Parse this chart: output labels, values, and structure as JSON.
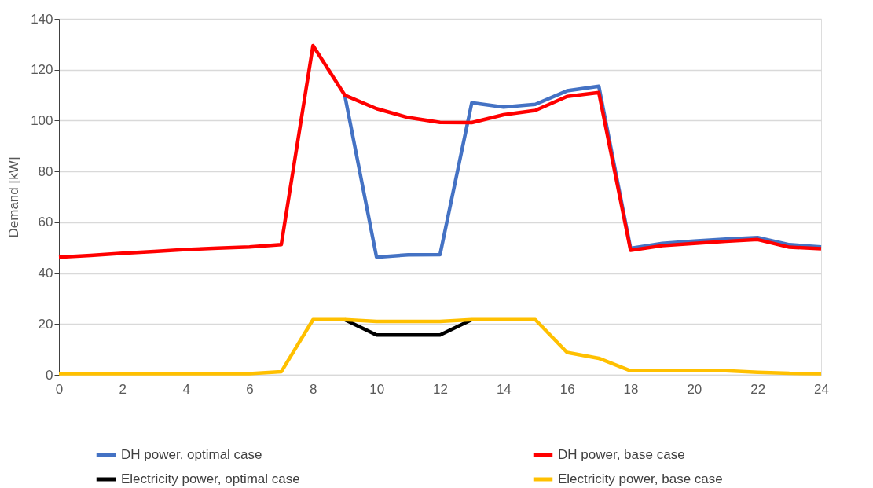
{
  "chart_data": {
    "type": "line",
    "ylabel": "Demand [kW]",
    "x": [
      0,
      1,
      2,
      3,
      4,
      5,
      6,
      7,
      8,
      9,
      10,
      11,
      12,
      13,
      14,
      15,
      16,
      17,
      18,
      19,
      20,
      21,
      22,
      23,
      24
    ],
    "series": [
      {
        "name": "DH power, optimal case",
        "color": "#4472c4",
        "values": [
          null,
          null,
          null,
          null,
          null,
          null,
          null,
          null,
          null,
          110,
          46.3,
          47.2,
          47.3,
          107,
          105.3,
          106.4,
          111.7,
          113.5,
          49.8,
          51.7,
          52.6,
          53.4,
          54,
          51.2,
          50.3
        ]
      },
      {
        "name": "DH power, base case",
        "color": "#ff0000",
        "values": [
          46.3,
          47,
          47.8,
          48.5,
          49.3,
          49.8,
          50.3,
          51.2,
          129.5,
          110,
          104.7,
          101.2,
          99.3,
          99.2,
          102.3,
          104,
          109.5,
          111,
          49,
          50.8,
          51.7,
          52.5,
          53.2,
          50.2,
          49.6
        ]
      },
      {
        "name": "Electricity power, optimal case",
        "color": "#000000",
        "values": [
          null,
          null,
          null,
          null,
          null,
          null,
          null,
          null,
          null,
          21.7,
          15.7,
          15.7,
          15.7,
          21.7,
          null,
          null,
          null,
          null,
          null,
          null,
          null,
          null,
          null,
          null,
          null
        ]
      },
      {
        "name": "Electricity power, base case",
        "color": "#ffc000",
        "values": [
          0.5,
          0.5,
          0.5,
          0.5,
          0.5,
          0.5,
          0.5,
          1.2,
          21.7,
          21.7,
          21,
          21,
          21,
          21.7,
          21.7,
          21.7,
          8.8,
          6.5,
          1.6,
          1.6,
          1.6,
          1.6,
          1.0,
          0.6,
          0.5
        ]
      }
    ],
    "xlim": [
      0,
      24
    ],
    "xticks": [
      0,
      2,
      4,
      6,
      8,
      10,
      12,
      14,
      16,
      18,
      20,
      22,
      24
    ],
    "ylim": [
      0,
      140
    ],
    "yticks": [
      0,
      20,
      40,
      60,
      80,
      100,
      120,
      140
    ],
    "grid": "y",
    "legend": "bottom",
    "line_style": "solid",
    "marker": "none"
  }
}
